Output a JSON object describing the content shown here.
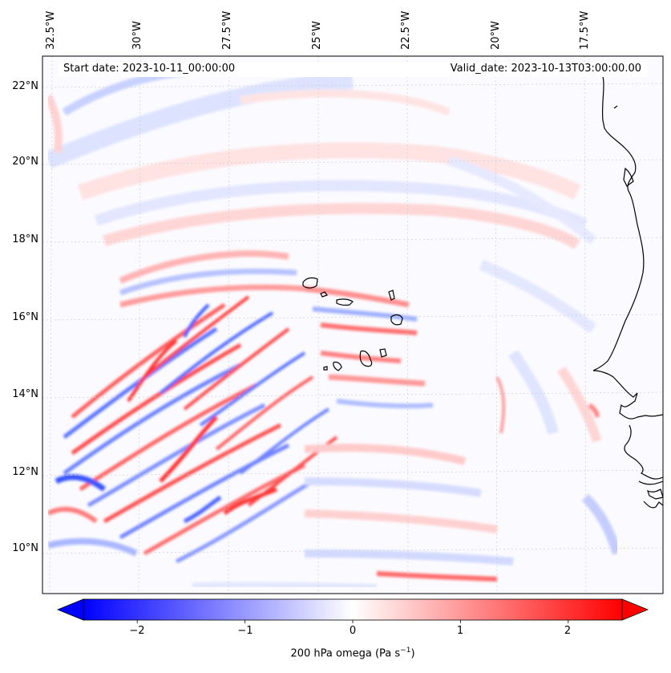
{
  "map": {
    "start_date": "Start date: 2023-10-11_00:00:00",
    "valid_date": "Valid_date: 2023-10-13T03:00:00.00",
    "lon_labels": [
      "32.5°W",
      "30°W",
      "27.5°W",
      "25°W",
      "22.5°W",
      "20°W",
      "17.5°W"
    ],
    "lat_labels": [
      "22°N",
      "20°N",
      "18°N",
      "16°N",
      "14°N",
      "12°N",
      "10°N"
    ],
    "lon_values": [
      -32.5,
      -30,
      -27.5,
      -25,
      -22.5,
      -20,
      -17.5
    ],
    "lat_values": [
      22,
      20,
      18,
      16,
      14,
      12,
      10
    ],
    "extent": {
      "lon_min": -32.5,
      "lon_max": -15.0,
      "lat_min": 8.9,
      "lat_max": 22.75
    },
    "field": "200 hPa omega",
    "colormap": "bwr",
    "colors": {
      "min": "#0000ff",
      "mid": "#ffffff",
      "max": "#ff0000",
      "coast": "#000000",
      "grid": "#bbbbbb"
    }
  },
  "colorbar": {
    "label_main": "200 hPa omega (Pa s",
    "label_sup": "−1",
    "label_end": ")",
    "ticks": [
      "−2",
      "−1",
      "0",
      "1",
      "2"
    ],
    "tick_values": [
      -2,
      -1,
      0,
      1,
      2
    ],
    "range": [
      -2.5,
      2.5
    ],
    "extend": "both"
  }
}
